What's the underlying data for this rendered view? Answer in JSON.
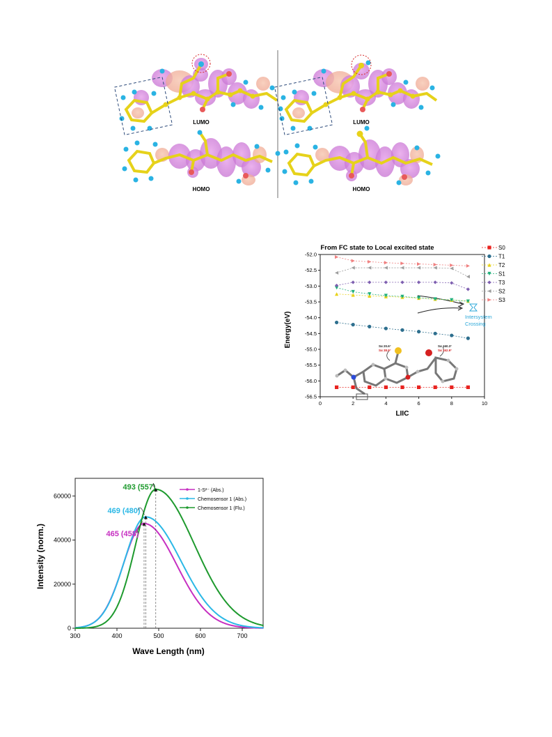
{
  "mo_figure": {
    "panels": [
      {
        "lumo_label": "LUMO",
        "homo_label": "HOMO"
      },
      {
        "lumo_label": "LUMO",
        "homo_label": "HOMO"
      }
    ]
  },
  "liic_chart": {
    "chart_data": {
      "type": "line",
      "title": "From FC state to Local excited state",
      "xlabel": "LIIC",
      "ylabel": "Energy(eV)",
      "xlim": [
        0,
        10
      ],
      "ylim": [
        -56.5,
        -52.0
      ],
      "xticks": [
        0,
        2,
        4,
        6,
        8,
        10
      ],
      "yticks": [
        -52.0,
        -52.5,
        -53.0,
        -53.5,
        -54.0,
        -54.5,
        -55.0,
        -55.5,
        -56.0,
        -56.5
      ],
      "x": [
        1,
        2,
        3,
        4,
        5,
        6,
        7,
        8,
        9
      ],
      "legend_position": "top-right",
      "series": [
        {
          "name": "S0",
          "color": "#e8231f",
          "marker": "square",
          "values": [
            -56.2,
            -56.2,
            -56.2,
            -56.2,
            -56.2,
            -56.2,
            -56.2,
            -56.2,
            -56.2
          ]
        },
        {
          "name": "T1",
          "color": "#2e6f8e",
          "marker": "circle",
          "values": [
            -54.15,
            -54.22,
            -54.28,
            -54.34,
            -54.39,
            -54.44,
            -54.5,
            -54.56,
            -54.65
          ]
        },
        {
          "name": "T2",
          "color": "#e8d21a",
          "marker": "triangle-up",
          "values": [
            -53.25,
            -53.28,
            -53.31,
            -53.33,
            -53.35,
            -53.38,
            -53.41,
            -53.44,
            -53.47
          ]
        },
        {
          "name": "S1",
          "color": "#1fb07a",
          "marker": "triangle-down",
          "values": [
            -53.05,
            -53.18,
            -53.25,
            -53.3,
            -53.33,
            -53.37,
            -53.41,
            -53.44,
            -53.48
          ]
        },
        {
          "name": "T3",
          "color": "#7e5fb0",
          "marker": "diamond",
          "values": [
            -52.98,
            -52.88,
            -52.88,
            -52.88,
            -52.88,
            -52.88,
            -52.88,
            -52.9,
            -53.1
          ]
        },
        {
          "name": "S2",
          "color": "#9e9e9e",
          "marker": "triangle-left",
          "values": [
            -52.58,
            -52.42,
            -52.42,
            -52.42,
            -52.42,
            -52.42,
            -52.42,
            -52.44,
            -52.7
          ]
        },
        {
          "name": "S3",
          "color": "#f08080",
          "marker": "triangle-right",
          "values": [
            -52.08,
            -52.2,
            -52.23,
            -52.26,
            -52.28,
            -52.3,
            -52.32,
            -52.34,
            -52.36
          ]
        }
      ],
      "annotation": "Intersystem Crossing",
      "annotation_color": "#2aa7d8",
      "inset_labels": [
        "Sα 20.6°",
        "Sα 38.9°",
        "Sα 160.3°",
        "Sα 162.9°"
      ]
    }
  },
  "spectrum_chart": {
    "chart_data": {
      "type": "line",
      "title": "",
      "xlabel": "Wave Length (nm)",
      "ylabel": "Intensity (norm.)",
      "xlim": [
        300,
        750
      ],
      "ylim": [
        0,
        68000
      ],
      "xticks": [
        300,
        400,
        500,
        600,
        700
      ],
      "yticks": [
        0,
        20000,
        40000,
        60000
      ],
      "legend_position": "top-right",
      "series": [
        {
          "name": "1-S²⁻ (Abs.)",
          "color": "#c62fc1",
          "peak_nm": 465,
          "peak_intensity": 47500,
          "sigma_left": 50,
          "sigma_right": 78
        },
        {
          "name": "Chemosensor 1 (Abs.)",
          "color": "#2bb8e6",
          "peak_nm": 469,
          "peak_intensity": 50500,
          "sigma_left": 51,
          "sigma_right": 84
        },
        {
          "name": "Chemosensor 1 (Flu.)",
          "color": "#1e9a2e",
          "peak_nm": 493,
          "peak_intensity": 63000,
          "sigma_left": 48,
          "sigma_right": 92
        }
      ],
      "peak_labels": [
        {
          "text": "493 (557)",
          "color": "#1e9a2e"
        },
        {
          "text": "469 (480)",
          "color": "#2bb8e6"
        },
        {
          "text": "465 (458)",
          "color": "#c62fc1"
        }
      ]
    }
  }
}
